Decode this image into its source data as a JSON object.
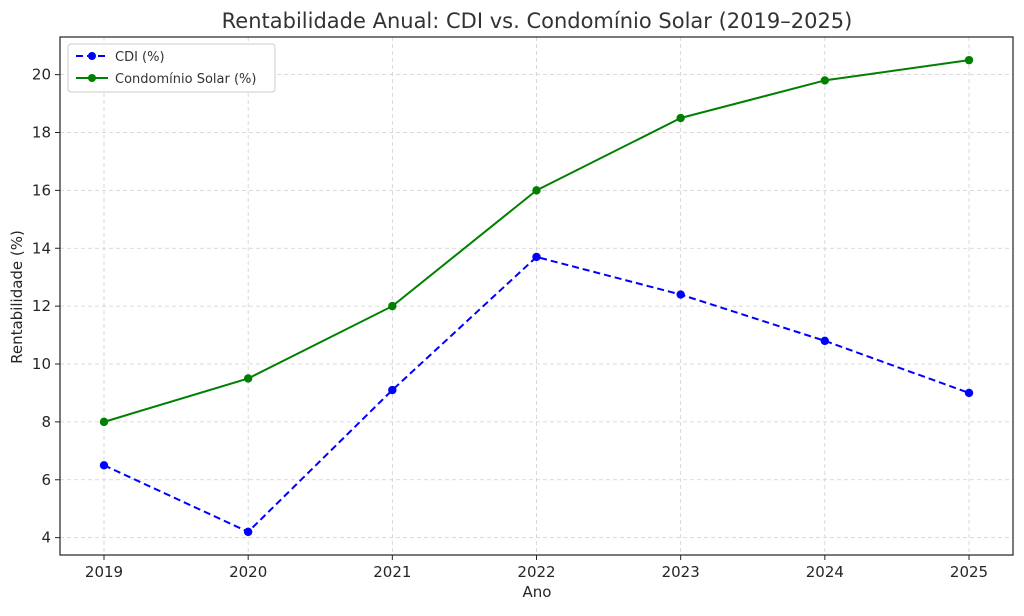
{
  "chart_data": {
    "type": "line",
    "title": "Rentabilidade Anual: CDI vs. Condomínio Solar (2019–2025)",
    "xlabel": "Ano",
    "ylabel": "Rentabilidade (%)",
    "categories": [
      "2019",
      "2020",
      "2021",
      "2022",
      "2023",
      "2024",
      "2025"
    ],
    "yticks": [
      "4",
      "6",
      "8",
      "10",
      "12",
      "14",
      "16",
      "18",
      "20"
    ],
    "ylim": [
      3.4,
      21.3
    ],
    "grid": true,
    "legend_position": "top-left",
    "series": [
      {
        "name": "CDI (%)",
        "values": [
          6.5,
          4.2,
          9.1,
          13.7,
          12.4,
          10.8,
          9.0
        ],
        "color": "#0000ff",
        "line_style": "dashed",
        "marker": "circle"
      },
      {
        "name": "Condomínio Solar (%)",
        "values": [
          8.0,
          9.5,
          12.0,
          16.0,
          18.5,
          19.8,
          20.5
        ],
        "color": "#008000",
        "line_style": "solid",
        "marker": "circle"
      }
    ]
  }
}
